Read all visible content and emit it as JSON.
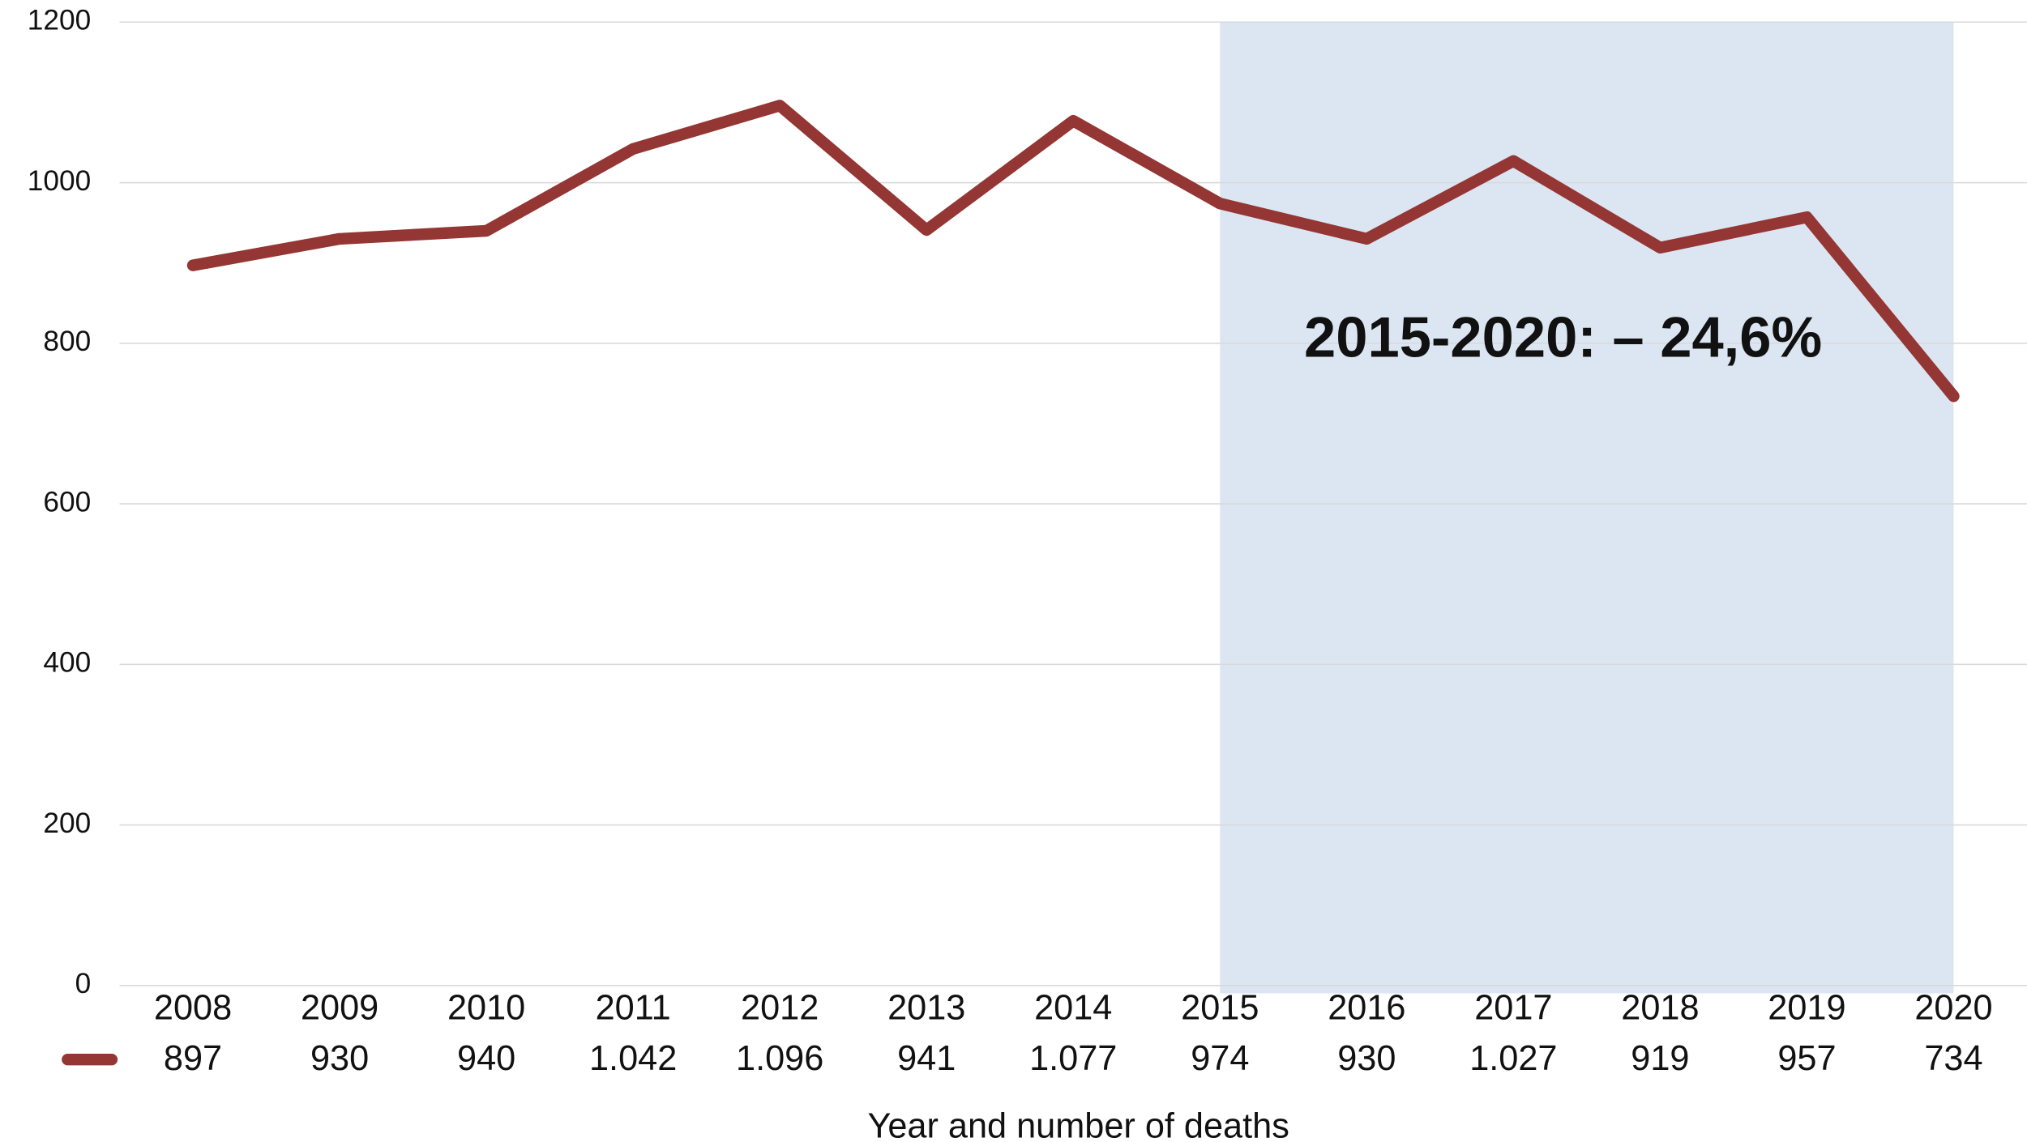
{
  "chart_data": {
    "type": "line",
    "categories": [
      "2008",
      "2009",
      "2010",
      "2011",
      "2012",
      "2013",
      "2014",
      "2015",
      "2016",
      "2017",
      "2018",
      "2019",
      "2020"
    ],
    "values": [
      897,
      930,
      940,
      1042,
      1096,
      941,
      1077,
      974,
      930,
      1027,
      919,
      957,
      734
    ],
    "value_labels": [
      "897",
      "930",
      "940",
      "1.042",
      "1.096",
      "941",
      "1.077",
      "974",
      "930",
      "1.027",
      "919",
      "957",
      "734"
    ],
    "color": "#943634",
    "ylim": [
      0,
      1200
    ],
    "yticks": [
      0,
      200,
      400,
      600,
      800,
      1000,
      1200
    ],
    "grid": true,
    "xlabel": "Year and number of deaths",
    "highlight": {
      "from": "2015",
      "to": "2020",
      "color": "#dce6f2"
    },
    "annotation": "2015-2020:  – 24,6%"
  }
}
